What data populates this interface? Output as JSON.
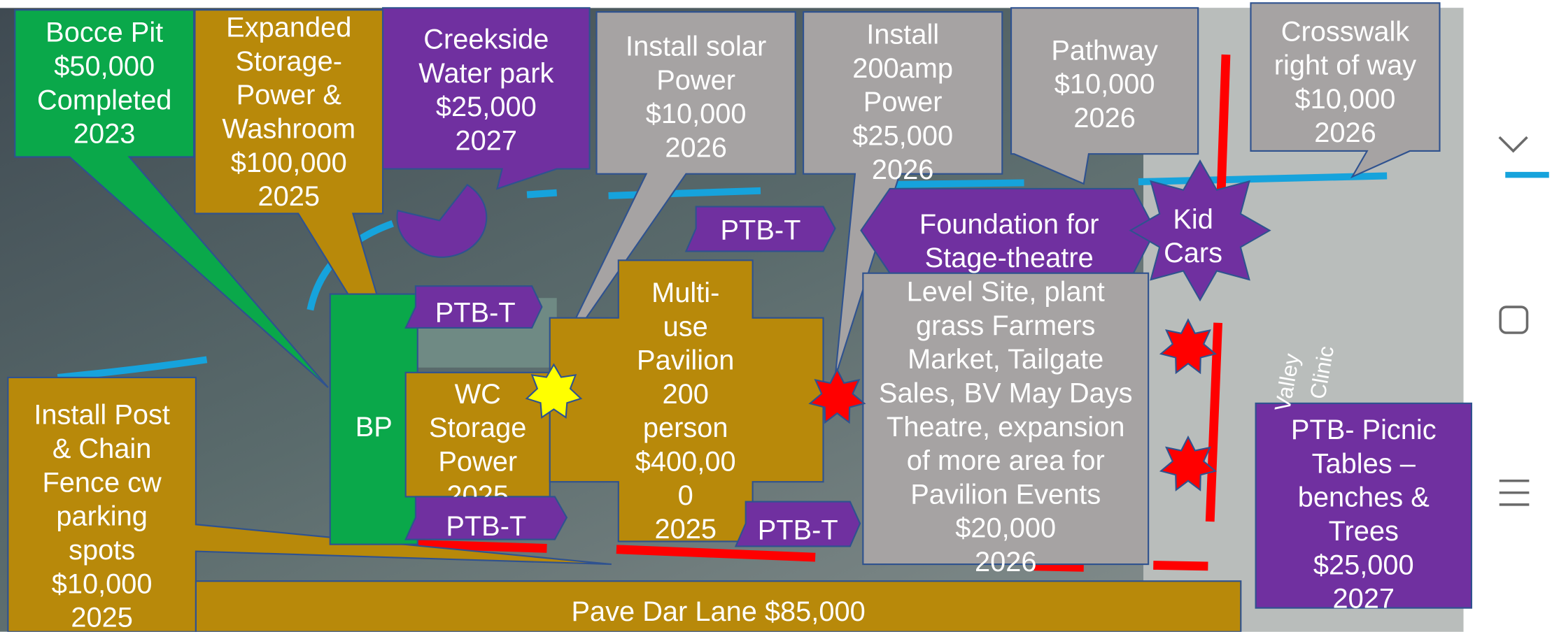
{
  "callouts": [
    {
      "text": "Bocce Pit\n$50,000\nCompleted\n2023"
    },
    {
      "text": "Expanded\nStorage-\nPower &\nWashroom\n$100,000\n2025"
    },
    {
      "text": "Creekside\nWater park\n$25,000\n2027"
    },
    {
      "text": "Install solar\nPower\n$10,000\n2026"
    },
    {
      "text": "Install\n200amp\nPower\n$25,000\n2026"
    },
    {
      "text": "Pathway\n$10,000\n2026"
    },
    {
      "text": "Crosswalk\nright of way\n$10,000\n2026"
    },
    {
      "text": "Install Post\n& Chain\nFence  cw\nparking\nspots\n$10,000\n2025"
    }
  ],
  "areas": [
    {
      "text": "BP"
    },
    {
      "text": "WC\nStorage\nPower\n2025"
    },
    {
      "text": "Multi-\nuse\nPavilion\n200\nperson\n$400,00\n0\n2025"
    },
    {
      "text": "Foundation for\nStage-theatre"
    },
    {
      "text": "Kid\nCars"
    },
    {
      "text": "Level Site, plant\ngrass Farmers\nMarket, Tailgate\nSales, BV May Days\nTheatre, expansion\nof more area for\nPavilion Events\n$20,000\n2026"
    },
    {
      "text": "PTB- Picnic\nTables –\nbenches &\nTrees\n$25,000\n2027"
    },
    {
      "text": "Pave Dar Lane $85,000"
    }
  ],
  "tags": [
    "PTB-T",
    "PTB-T",
    "PTB-T",
    "PTB-T"
  ],
  "map_labels": [
    "Valley",
    "Clinic"
  ]
}
